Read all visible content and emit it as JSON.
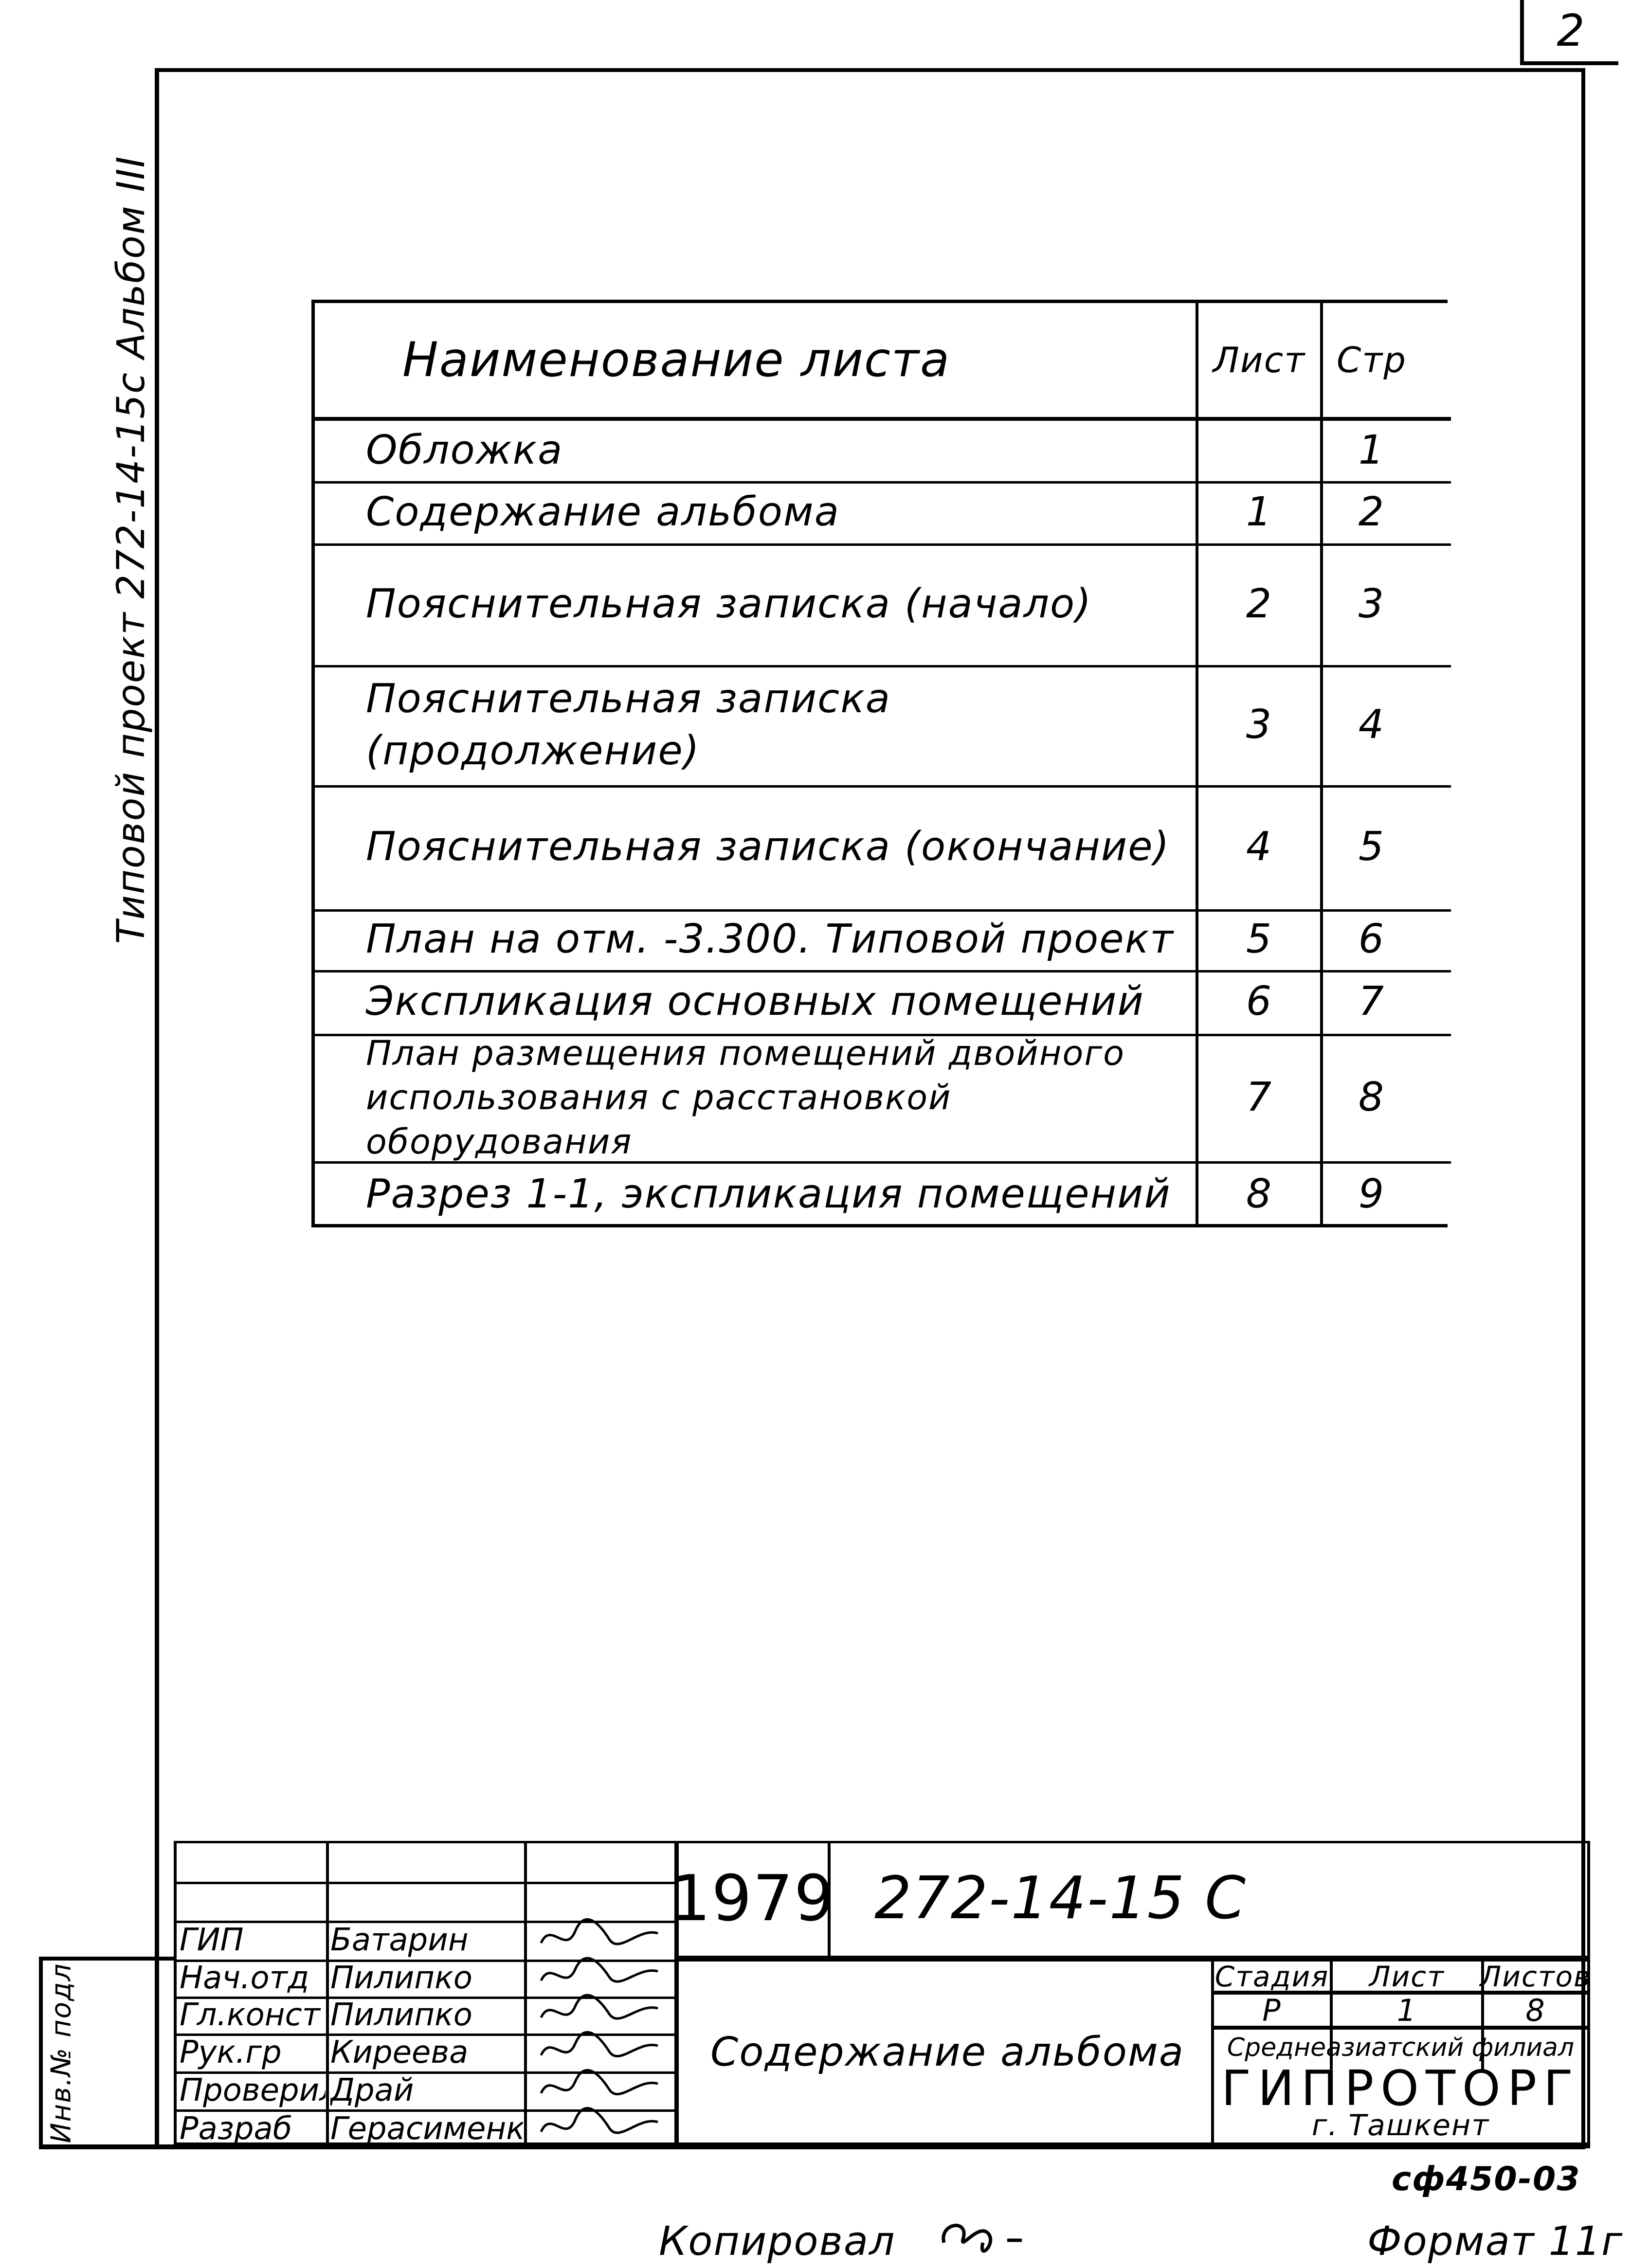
{
  "page_number": "2",
  "side_caption": "Типовой проект 272-14-15с Альбом III",
  "contents_table": {
    "headers": {
      "name": "Наименование листа",
      "sheet": "Лист",
      "page": "Стр"
    },
    "rows": [
      {
        "name": "Обложка",
        "sheet": "",
        "page": "1"
      },
      {
        "name": "Содержание альбома",
        "sheet": "1",
        "page": "2"
      },
      {
        "name": "Пояснительная записка (начало)",
        "sheet": "2",
        "page": "3"
      },
      {
        "name": "Пояснительная записка (продолжение)",
        "sheet": "3",
        "page": "4"
      },
      {
        "name": "Пояснительная записка (окончание)",
        "sheet": "4",
        "page": "5"
      },
      {
        "name": "План на отм. -3.300. Типовой проект",
        "sheet": "5",
        "page": "6"
      },
      {
        "name": "Экспликация основных помещений",
        "sheet": "6",
        "page": "7"
      },
      {
        "name": "План размещения помещений двойного использования с расстановкой оборудования",
        "sheet": "7",
        "page": "8"
      },
      {
        "name": "Разрез 1-1, экспликация помещений",
        "sheet": "8",
        "page": "9"
      }
    ]
  },
  "title_block": {
    "year": "1979",
    "project_code": "272-14-15 С",
    "sheet_title": "Содержание альбома",
    "staff": [
      {
        "role": "ГИП",
        "name": "Батарин"
      },
      {
        "role": "Нач.отд",
        "name": "Пилипко"
      },
      {
        "role": "Гл.конст",
        "name": "Пилипко"
      },
      {
        "role": "Рук.гр",
        "name": "Киреева"
      },
      {
        "role": "Проверил",
        "name": "Драй"
      },
      {
        "role": "Разраб",
        "name": "Герасименко"
      }
    ],
    "stage_label": "Стадия",
    "sheet_label": "Лист",
    "sheets_label": "Листов",
    "stage": "Р",
    "sheet": "1",
    "sheets": "8",
    "org_branch": "Среднеазиатский филиал",
    "org_name": "ГИПРОТОРГ",
    "org_city": "г. Ташкент",
    "inv_label": "Инв.№ подл"
  },
  "footer": {
    "archive_code": "сф450-03",
    "copied_by": "Копировал",
    "format": "Формат 11г"
  }
}
